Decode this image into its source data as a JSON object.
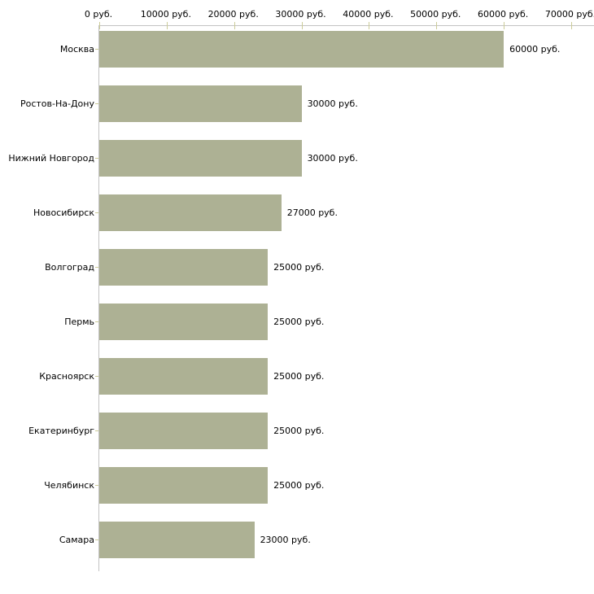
{
  "chart_data": {
    "type": "bar",
    "orientation": "horizontal",
    "title": "",
    "xlabel": "",
    "ylabel": "",
    "xlim": [
      0,
      70000
    ],
    "grid": false,
    "legend": null,
    "categories": [
      "Москва",
      "Ростов-На-Дону",
      "Нижний Новгород",
      "Новосибирск",
      "Волгоград",
      "Пермь",
      "Красноярск",
      "Екатеринбург",
      "Челябинск",
      "Самара"
    ],
    "values": [
      60000,
      30000,
      30000,
      27000,
      25000,
      25000,
      25000,
      25000,
      25000,
      23000
    ],
    "value_labels": [
      "60000 руб.",
      "30000 руб.",
      "30000 руб.",
      "27000 руб.",
      "25000 руб.",
      "25000 руб.",
      "25000 руб.",
      "25000 руб.",
      "25000 руб.",
      "23000 руб."
    ],
    "x_tick_values": [
      0,
      10000,
      20000,
      30000,
      40000,
      50000,
      60000,
      70000
    ],
    "x_tick_labels": [
      "0 руб.",
      "10000 руб.",
      "20000 руб.",
      "30000 руб.",
      "40000 руб.",
      "50000 руб.",
      "60000 руб.",
      "70000 руб."
    ],
    "colors": {
      "bar": "#adb194",
      "axis": "#c3c3c3",
      "tick": "#cccc99",
      "text": "#000000",
      "background": "#ffffff"
    }
  }
}
